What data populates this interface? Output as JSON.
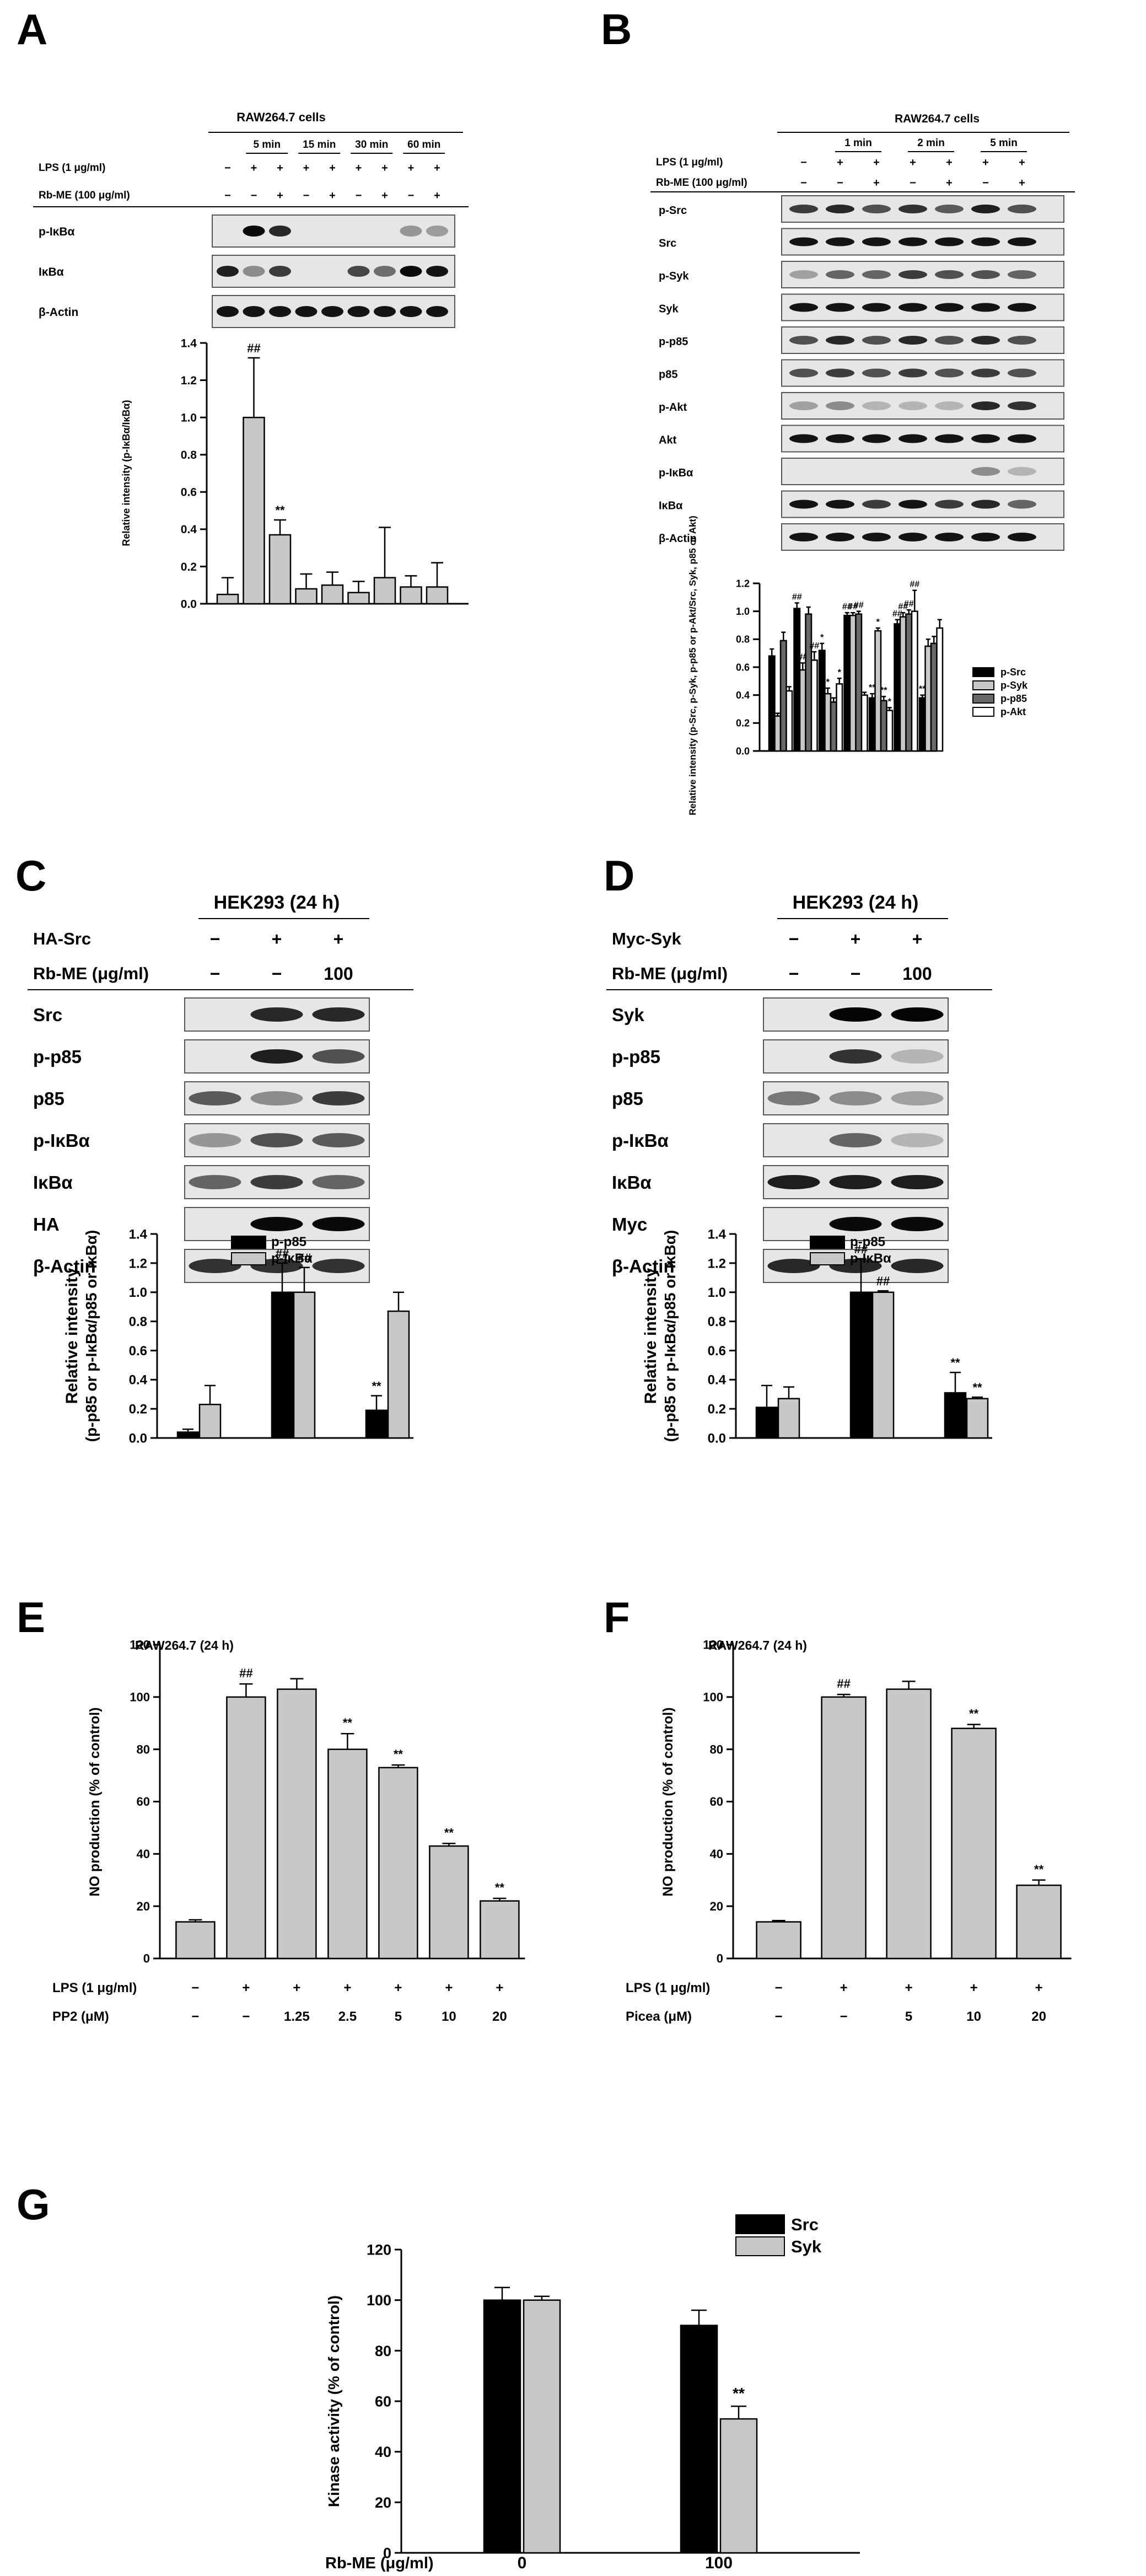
{
  "panels": {
    "A": {
      "letter": "A",
      "cell_line": "RAW264.7 cells",
      "time_groups": [
        "5 min",
        "15 min",
        "30 min",
        "60 min"
      ],
      "row_labels": [
        "LPS (1 μg/ml)",
        "Rb-ME (100 μg/ml)"
      ],
      "lps_signs": [
        "−",
        "+",
        "+",
        "+",
        "+",
        "+",
        "+",
        "+",
        "+"
      ],
      "rbme_signs": [
        "−",
        "−",
        "+",
        "−",
        "+",
        "−",
        "+",
        "−",
        "+"
      ],
      "blots": [
        "p-IκBα",
        "IκBα",
        "β-Actin"
      ],
      "chart_data": {
        "type": "bar",
        "ylabel": "Relative intensity (p-IκBα/IκBα)",
        "ylim": [
          0,
          1.4
        ],
        "yticks": [
          "0.0",
          "0.2",
          "0.4",
          "0.6",
          "0.8",
          "1.0",
          "1.2",
          "1.4"
        ],
        "values": [
          0.05,
          1.0,
          0.37,
          0.08,
          0.1,
          0.06,
          0.14,
          0.09,
          0.09
        ],
        "errors": [
          0.09,
          0.32,
          0.08,
          0.08,
          0.07,
          0.06,
          0.27,
          0.06,
          0.13
        ],
        "annotations": [
          "",
          "##",
          "**",
          "",
          "",
          "",
          "",
          "",
          ""
        ],
        "color": "#c8c8c8"
      }
    },
    "B": {
      "letter": "B",
      "cell_line": "RAW264.7 cells",
      "time_groups": [
        "1 min",
        "2 min",
        "5 min"
      ],
      "row_labels": [
        "LPS (1 μg/ml)",
        "Rb-ME (100 μg/ml)"
      ],
      "lps_signs": [
        "−",
        "+",
        "+",
        "+",
        "+",
        "+",
        "+"
      ],
      "rbme_signs": [
        "−",
        "−",
        "+",
        "−",
        "+",
        "−",
        "+"
      ],
      "blots": [
        "p-Src",
        "Src",
        "p-Syk",
        "Syk",
        "p-p85",
        "p85",
        "p-Akt",
        "Akt",
        "p-IκBα",
        "IκBα",
        "β-Actin"
      ],
      "chart_data": {
        "type": "bar",
        "ylabel": "Relative intensity (p-Src, p-Syk, p-p85 or p-Akt/Src, Syk, p85 or Akt)",
        "ylim": [
          0,
          1.2
        ],
        "yticks": [
          "0.0",
          "0.2",
          "0.4",
          "0.6",
          "0.8",
          "1.0",
          "1.2"
        ],
        "series": [
          {
            "name": "p-Src",
            "color": "#000000",
            "values": [
              0.68,
              1.02,
              0.72,
              0.97,
              0.38,
              0.91,
              0.38
            ],
            "errors": [
              0.05,
              0.04,
              0.05,
              0.02,
              0.03,
              0.03,
              0.02
            ],
            "annotations": [
              "",
              "##",
              "*",
              "##",
              "**",
              "##",
              "**"
            ]
          },
          {
            "name": "p-Syk",
            "color": "#c8c8c8",
            "values": [
              0.25,
              0.58,
              0.41,
              0.97,
              0.86,
              0.96,
              0.75
            ],
            "errors": [
              0.02,
              0.05,
              0.04,
              0.02,
              0.02,
              0.03,
              0.05
            ],
            "annotations": [
              "",
              "##",
              "*",
              "##",
              "*",
              "##",
              ""
            ]
          },
          {
            "name": "p-p85",
            "color": "#696969",
            "values": [
              0.79,
              0.98,
              0.35,
              0.98,
              0.36,
              0.98,
              0.77
            ],
            "errors": [
              0.06,
              0.05,
              0.03,
              0.02,
              0.03,
              0.03,
              0.05
            ],
            "annotations": [
              "",
              "",
              "",
              "##",
              "**",
              "##",
              ""
            ]
          },
          {
            "name": "p-Akt",
            "color": "#ffffff",
            "values": [
              0.43,
              0.65,
              0.48,
              0.4,
              0.29,
              1.0,
              0.88
            ],
            "errors": [
              0.03,
              0.06,
              0.04,
              0.02,
              0.02,
              0.15,
              0.06
            ],
            "annotations": [
              "",
              "##",
              "*",
              "",
              "*",
              "##",
              ""
            ]
          }
        ]
      }
    },
    "C": {
      "letter": "C",
      "cell_line": "HEK293 (24 h)",
      "row_labels": [
        "HA-Src",
        "Rb-ME (μg/ml)"
      ],
      "row1_signs": [
        "−",
        "+",
        "+"
      ],
      "row2_signs": [
        "−",
        "−",
        "100"
      ],
      "blots": [
        "Src",
        "p-p85",
        "p85",
        "p-IκBα",
        "IκBα",
        "HA",
        "β-Actin"
      ],
      "chart_data": {
        "type": "bar",
        "ylabel_line1": "Relative intensity",
        "ylabel_line2": "(p-p85 or p-IκBα/p85 or IκBα)",
        "ylim": [
          0,
          1.4
        ],
        "yticks": [
          "0.0",
          "0.2",
          "0.4",
          "0.6",
          "0.8",
          "1.0",
          "1.2",
          "1.4"
        ],
        "series": [
          {
            "name": "p-p85",
            "color": "#000000",
            "values": [
              0.04,
              1.0,
              0.19
            ],
            "errors": [
              0.02,
              0.2,
              0.1
            ],
            "annotations": [
              "",
              "##",
              "**"
            ]
          },
          {
            "name": "p-IκBα",
            "color": "#c8c8c8",
            "values": [
              0.23,
              1.0,
              0.87
            ],
            "errors": [
              0.13,
              0.17,
              0.13
            ],
            "annotations": [
              "",
              "##",
              ""
            ]
          }
        ]
      }
    },
    "D": {
      "letter": "D",
      "cell_line": "HEK293 (24 h)",
      "row_labels": [
        "Myc-Syk",
        "Rb-ME (μg/ml)"
      ],
      "row1_signs": [
        "−",
        "+",
        "+"
      ],
      "row2_signs": [
        "−",
        "−",
        "100"
      ],
      "blots": [
        "Syk",
        "p-p85",
        "p85",
        "p-IκBα",
        "IκBα",
        "Myc",
        "β-Actin"
      ],
      "chart_data": {
        "type": "bar",
        "ylabel_line1": "Relative intensity",
        "ylabel_line2": "(p-p85 or p-IκBα/p85 or IκBα)",
        "ylim": [
          0,
          1.4
        ],
        "yticks": [
          "0.0",
          "0.2",
          "0.4",
          "0.6",
          "0.8",
          "1.0",
          "1.2",
          "1.4"
        ],
        "series": [
          {
            "name": "p-p85",
            "color": "#000000",
            "values": [
              0.21,
              1.0,
              0.31
            ],
            "errors": [
              0.15,
              0.23,
              0.14
            ],
            "annotations": [
              "",
              "##",
              "**"
            ]
          },
          {
            "name": "p-IκBα",
            "color": "#c8c8c8",
            "values": [
              0.27,
              1.0,
              0.27
            ],
            "errors": [
              0.08,
              0.01,
              0.01
            ],
            "annotations": [
              "",
              "##",
              "**"
            ]
          }
        ]
      }
    },
    "E": {
      "letter": "E",
      "title": "RAW264.7 (24 h)",
      "row_labels": [
        "LPS (1 μg/ml)",
        "PP2 (μM)"
      ],
      "lps_signs": [
        "−",
        "+",
        "+",
        "+",
        "+",
        "+",
        "+"
      ],
      "dose_labels": [
        "−",
        "−",
        "1.25",
        "2.5",
        "5",
        "10",
        "20"
      ],
      "chart_data": {
        "type": "bar",
        "ylabel": "NO production (% of control)",
        "ylim": [
          0,
          120
        ],
        "yticks": [
          "0",
          "20",
          "40",
          "60",
          "80",
          "100",
          "120"
        ],
        "values": [
          14,
          100,
          103,
          80,
          73,
          43,
          22
        ],
        "errors": [
          0.8,
          5,
          4,
          6,
          1,
          1,
          1
        ],
        "annotations": [
          "",
          "##",
          "",
          "**",
          "**",
          "**",
          "**"
        ],
        "color": "#c8c8c8"
      }
    },
    "F": {
      "letter": "F",
      "title": "RAW264.7 (24 h)",
      "row_labels": [
        "LPS (1 μg/ml)",
        "Picea (μM)"
      ],
      "lps_signs": [
        "−",
        "+",
        "+",
        "+",
        "+"
      ],
      "dose_labels": [
        "−",
        "−",
        "5",
        "10",
        "20"
      ],
      "chart_data": {
        "type": "bar",
        "ylabel": "NO production (% of control)",
        "ylim": [
          0,
          120
        ],
        "yticks": [
          "0",
          "20",
          "40",
          "60",
          "80",
          "100",
          "120"
        ],
        "values": [
          14,
          100,
          103,
          88,
          28
        ],
        "errors": [
          0.5,
          1,
          3,
          1.5,
          2
        ],
        "annotations": [
          "",
          "##",
          "",
          "**",
          "**"
        ],
        "color": "#c8c8c8"
      }
    },
    "G": {
      "letter": "G",
      "row_label": "Rb-ME (μg/ml)",
      "chart_data": {
        "type": "bar",
        "ylabel": "Kinase activity (% of control)",
        "ylim": [
          0,
          120
        ],
        "yticks": [
          "0",
          "20",
          "40",
          "60",
          "80",
          "100",
          "120"
        ],
        "categories": [
          "0",
          "100"
        ],
        "series": [
          {
            "name": "Src",
            "color": "#000000",
            "values": [
              100,
              90
            ],
            "errors": [
              5,
              6
            ],
            "annotations": [
              "",
              ""
            ]
          },
          {
            "name": "Syk",
            "color": "#c8c8c8",
            "values": [
              100,
              53
            ],
            "errors": [
              1.5,
              5
            ],
            "annotations": [
              "",
              "**"
            ]
          }
        ]
      }
    }
  }
}
